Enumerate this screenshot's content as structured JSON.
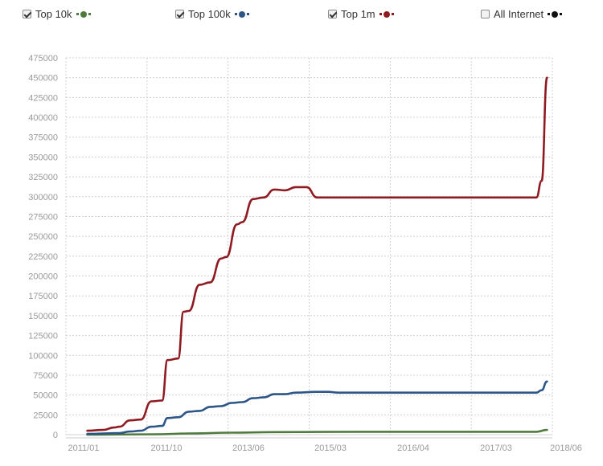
{
  "legend": {
    "items": [
      {
        "label": "Top 10k",
        "checked": true,
        "color": "#4e7a3e"
      },
      {
        "label": "Top 100k",
        "checked": true,
        "color": "#2d5687"
      },
      {
        "label": "Top 1m",
        "checked": true,
        "color": "#8e1b22"
      },
      {
        "label": "All Internet",
        "checked": false,
        "color": "#111111"
      }
    ]
  },
  "chart_data": {
    "type": "line",
    "title": "",
    "xlabel": "",
    "ylabel": "",
    "ylim": [
      0,
      475000
    ],
    "xlim": [
      "2010-11",
      "2018-06"
    ],
    "y_ticks": [
      0,
      25000,
      50000,
      75000,
      100000,
      125000,
      150000,
      175000,
      200000,
      225000,
      250000,
      275000,
      300000,
      325000,
      350000,
      375000,
      400000,
      425000,
      450000,
      475000
    ],
    "x_ticks": [
      "2011/01",
      "2011/10",
      "2013/06",
      "2015/03",
      "2016/04",
      "2017/03",
      "2018/06"
    ],
    "grid": true,
    "legend_position": "top",
    "series": [
      {
        "name": "Top 1m",
        "color": "#8e1b22",
        "points": [
          [
            "2011-03",
            5000
          ],
          [
            "2011-06",
            6000
          ],
          [
            "2011-08",
            9000
          ],
          [
            "2011-09",
            10000
          ],
          [
            "2011-11",
            18000
          ],
          [
            "2012-01",
            19000
          ],
          [
            "2012-03",
            42000
          ],
          [
            "2012-05",
            43000
          ],
          [
            "2012-06",
            94000
          ],
          [
            "2012-08",
            96000
          ],
          [
            "2012-09",
            155000
          ],
          [
            "2012-10",
            156000
          ],
          [
            "2012-12",
            189000
          ],
          [
            "2013-02",
            192000
          ],
          [
            "2013-04",
            222000
          ],
          [
            "2013-05",
            224000
          ],
          [
            "2013-07",
            265000
          ],
          [
            "2013-08",
            268000
          ],
          [
            "2013-10",
            297000
          ],
          [
            "2013-12",
            299000
          ],
          [
            "2014-02",
            309000
          ],
          [
            "2014-04",
            308000
          ],
          [
            "2014-06",
            312000
          ],
          [
            "2014-08",
            312000
          ],
          [
            "2014-10",
            299000
          ],
          [
            "2015-06",
            299000
          ],
          [
            "2016-01",
            299000
          ],
          [
            "2017-01",
            299000
          ],
          [
            "2018-03",
            299000
          ],
          [
            "2018-04",
            320000
          ],
          [
            "2018-05",
            450000
          ]
        ]
      },
      {
        "name": "Top 100k",
        "color": "#2d5687",
        "points": [
          [
            "2011-03",
            1000
          ],
          [
            "2011-09",
            2000
          ],
          [
            "2011-11",
            4000
          ],
          [
            "2012-01",
            5000
          ],
          [
            "2012-03",
            10000
          ],
          [
            "2012-05",
            11000
          ],
          [
            "2012-06",
            21000
          ],
          [
            "2012-08",
            22000
          ],
          [
            "2012-10",
            29000
          ],
          [
            "2012-12",
            30000
          ],
          [
            "2013-02",
            35000
          ],
          [
            "2013-04",
            36000
          ],
          [
            "2013-06",
            40000
          ],
          [
            "2013-08",
            41000
          ],
          [
            "2013-10",
            46000
          ],
          [
            "2013-12",
            47000
          ],
          [
            "2014-02",
            51000
          ],
          [
            "2014-04",
            51000
          ],
          [
            "2014-06",
            53000
          ],
          [
            "2014-10",
            54000
          ],
          [
            "2014-12",
            54000
          ],
          [
            "2015-02",
            53000
          ],
          [
            "2016-06",
            53000
          ],
          [
            "2017-06",
            53000
          ],
          [
            "2018-03",
            53000
          ],
          [
            "2018-04",
            56000
          ],
          [
            "2018-05",
            67000
          ]
        ]
      },
      {
        "name": "Top 10k",
        "color": "#4e7a3e",
        "points": [
          [
            "2011-03",
            0
          ],
          [
            "2012-04",
            500
          ],
          [
            "2012-10",
            1500
          ],
          [
            "2013-06",
            2500
          ],
          [
            "2014-02",
            3200
          ],
          [
            "2015-06",
            3600
          ],
          [
            "2016-06",
            3600
          ],
          [
            "2017-06",
            3600
          ],
          [
            "2018-03",
            3600
          ],
          [
            "2018-05",
            6000
          ]
        ]
      }
    ]
  }
}
